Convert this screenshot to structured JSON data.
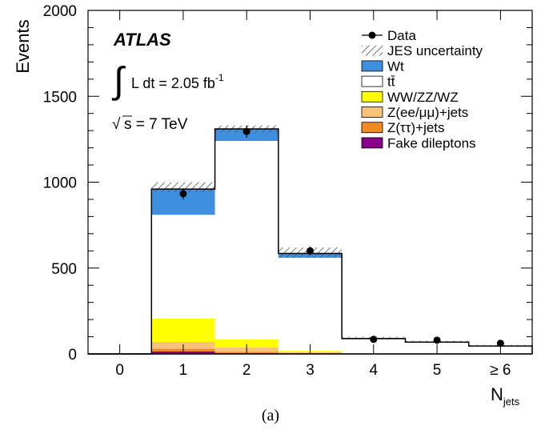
{
  "caption": "(a)",
  "chart_data": {
    "type": "bar",
    "stacked": true,
    "experiment": "ATLAS",
    "luminosity_label": "L dt = 2.05 fb",
    "luminosity_exponent": "-1",
    "energy_label": "s = 7 TeV",
    "xlabel": "N",
    "xlabel_sub": "jets",
    "ylabel": "Events",
    "ylim": [
      0,
      2000
    ],
    "yticks": [
      "0",
      "500",
      "1000",
      "1500",
      "2000"
    ],
    "categories": [
      "0",
      "1",
      "2",
      "3",
      "4",
      "5",
      "≥ 6"
    ],
    "grid": false,
    "legend_position": "top-right",
    "series": [
      {
        "name": "Fake dileptons",
        "color": "#8b008b",
        "values": [
          0,
          15,
          5,
          2,
          0,
          0,
          0
        ]
      },
      {
        "name": "Z(ττ)+jets",
        "color": "#f08a24",
        "values": [
          0,
          15,
          7,
          3,
          0,
          0,
          0
        ]
      },
      {
        "name": "Z(ee/μμ)+jets",
        "color": "#f7c27a",
        "values": [
          0,
          40,
          25,
          5,
          1,
          0,
          0
        ]
      },
      {
        "name": "WW/ZZ/WZ",
        "color": "#ffff00",
        "values": [
          0,
          135,
          48,
          8,
          2,
          1,
          0
        ]
      },
      {
        "name": "tt̄",
        "color": "#ffffff",
        "values": [
          0,
          605,
          1155,
          542,
          82,
          66,
          45
        ]
      },
      {
        "name": "Wt",
        "color": "#3f8fe0",
        "values": [
          0,
          150,
          70,
          25,
          5,
          2,
          1
        ]
      }
    ],
    "jes_uncertainty": {
      "name": "JES uncertainty",
      "values": [
        [
          0,
          0
        ],
        [
          940,
          1000
        ],
        [
          1290,
          1330
        ],
        [
          560,
          620
        ],
        [
          85,
          100
        ],
        [
          66,
          76
        ],
        [
          45,
          52
        ]
      ]
    },
    "data": {
      "name": "Data",
      "values": [
        null,
        933,
        1295,
        600,
        85,
        80,
        62
      ],
      "errors": [
        0,
        31,
        36,
        25,
        9,
        9,
        8
      ]
    }
  }
}
